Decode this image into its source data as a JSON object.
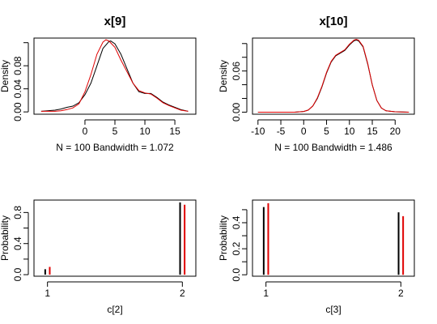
{
  "colors": {
    "black_series": "#000000",
    "red_series": "#e00000"
  },
  "chart_data": [
    {
      "type": "line",
      "title": "x[9]",
      "xlabel": "N = 100   Bandwidth = 1.072",
      "ylabel": "Density",
      "xlim": [
        -8.5,
        18.5
      ],
      "ylim": [
        -0.004,
        0.128
      ],
      "xticks": [
        0,
        5,
        10,
        15
      ],
      "xtick_labels": [
        "0",
        "5",
        "10",
        "15"
      ],
      "yticks": [
        0,
        0.04,
        0.08,
        0.12
      ],
      "ytick_labels": [
        "0.00",
        "0.04",
        "0.08",
        ""
      ],
      "series": [
        {
          "color": "black",
          "x": [
            -7.3,
            -5,
            -4,
            -3,
            -2,
            -1,
            0,
            1,
            2,
            3,
            4,
            4.3,
            5,
            6,
            7,
            8,
            9,
            10,
            11,
            12,
            13,
            14,
            15,
            16,
            17.2
          ],
          "y": [
            0.001,
            0.003,
            0.005,
            0.008,
            0.01,
            0.016,
            0.03,
            0.05,
            0.08,
            0.11,
            0.122,
            0.123,
            0.118,
            0.1,
            0.075,
            0.05,
            0.035,
            0.032,
            0.032,
            0.025,
            0.017,
            0.012,
            0.008,
            0.004,
            0.001
          ]
        },
        {
          "color": "red",
          "x": [
            -7.3,
            -5,
            -4,
            -3,
            -2,
            -1,
            0,
            1,
            2,
            3,
            3.5,
            4,
            5,
            6,
            7,
            8,
            9,
            10,
            11,
            12,
            13,
            14,
            15,
            16,
            17.2
          ],
          "y": [
            0.001,
            0.001,
            0.002,
            0.004,
            0.007,
            0.014,
            0.035,
            0.065,
            0.1,
            0.121,
            0.125,
            0.123,
            0.112,
            0.09,
            0.07,
            0.05,
            0.037,
            0.033,
            0.031,
            0.024,
            0.016,
            0.011,
            0.007,
            0.003,
            0.001
          ]
        }
      ]
    },
    {
      "type": "line",
      "title": "x[10]",
      "xlabel": "N = 100   Bandwidth = 1.486",
      "ylabel": "Density",
      "xlim": [
        -11.2,
        24.2
      ],
      "ylim": [
        -0.003,
        0.108
      ],
      "xticks": [
        -10,
        -5,
        0,
        5,
        10,
        15,
        20
      ],
      "xtick_labels": [
        "-10",
        "-5",
        "0",
        "5",
        "10",
        "15",
        "20"
      ],
      "yticks": [
        0,
        0.02,
        0.04,
        0.06,
        0.08,
        0.1
      ],
      "ytick_labels": [
        "0.00",
        "",
        "",
        "0.06",
        "",
        ""
      ],
      "series": [
        {
          "color": "black",
          "x": [
            -10,
            -2,
            0,
            1,
            2,
            3,
            4,
            5,
            6,
            7,
            8,
            9,
            10,
            10.5,
            11,
            11.5,
            12,
            13,
            14,
            15,
            16,
            17,
            18,
            20,
            23
          ],
          "y": [
            0,
            0,
            0.001,
            0.003,
            0.009,
            0.02,
            0.037,
            0.057,
            0.073,
            0.082,
            0.086,
            0.09,
            0.098,
            0.101,
            0.104,
            0.105,
            0.104,
            0.095,
            0.07,
            0.04,
            0.017,
            0.006,
            0.002,
            0.0005,
            0
          ]
        },
        {
          "color": "red",
          "x": [
            -10,
            -2,
            0,
            1,
            2,
            3,
            4,
            5,
            6,
            7,
            8,
            9,
            10,
            10.5,
            11,
            11.5,
            12,
            13,
            14,
            15,
            16,
            17,
            18,
            20,
            23
          ],
          "y": [
            0,
            0,
            0.001,
            0.003,
            0.009,
            0.021,
            0.038,
            0.058,
            0.074,
            0.083,
            0.087,
            0.091,
            0.099,
            0.102,
            0.105,
            0.106,
            0.105,
            0.096,
            0.071,
            0.04,
            0.017,
            0.006,
            0.002,
            0.0005,
            0
          ]
        }
      ]
    },
    {
      "type": "bar",
      "title": "",
      "xlabel": "c[2]",
      "ylabel": "Probability",
      "xlim": [
        0.9,
        2.1
      ],
      "ylim": [
        -0.02,
        0.96
      ],
      "xticks": [
        1,
        2
      ],
      "xtick_labels": [
        "1",
        "2"
      ],
      "yticks": [
        0,
        0.2,
        0.4,
        0.6,
        0.8
      ],
      "ytick_labels": [
        "0.0",
        "",
        "0.4",
        "",
        "0.8"
      ],
      "categories": [
        1,
        2
      ],
      "series": [
        {
          "color": "black",
          "values": [
            0.07,
            0.93
          ]
        },
        {
          "color": "red",
          "values": [
            0.1,
            0.9
          ]
        }
      ]
    },
    {
      "type": "bar",
      "title": "",
      "xlabel": "c[3]",
      "ylabel": "Probability",
      "xlim": [
        0.9,
        2.1
      ],
      "ylim": [
        -0.011,
        0.574
      ],
      "xticks": [
        1,
        2
      ],
      "xtick_labels": [
        "1",
        "2"
      ],
      "yticks": [
        0,
        0.1,
        0.2,
        0.3,
        0.4,
        0.5
      ],
      "ytick_labels": [
        "0.0",
        "",
        "0.2",
        "",
        "0.4",
        ""
      ],
      "categories": [
        1,
        2
      ],
      "series": [
        {
          "color": "black",
          "values": [
            0.52,
            0.48
          ]
        },
        {
          "color": "red",
          "values": [
            0.55,
            0.45
          ]
        }
      ]
    }
  ]
}
